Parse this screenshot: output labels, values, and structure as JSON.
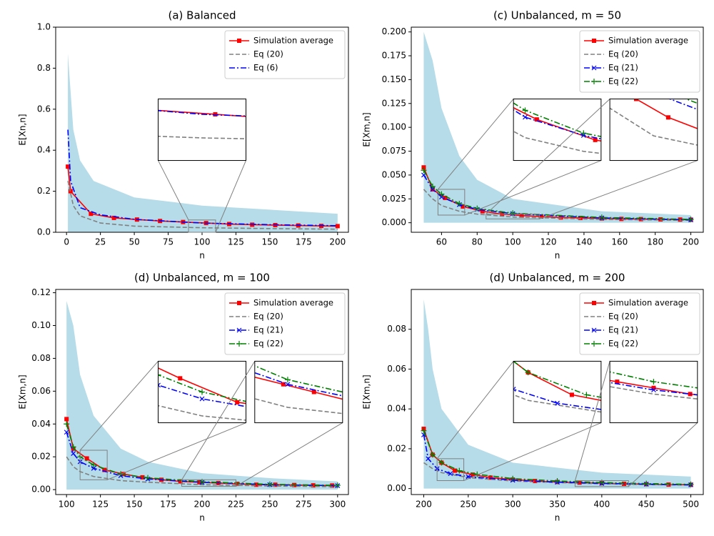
{
  "chart_data": [
    {
      "type": "line",
      "title": "(a) Balanced",
      "xlabel": "n",
      "ylabel": "E[Xn,n]",
      "xlim": [
        -8,
        208
      ],
      "ylim": [
        0,
        1
      ],
      "xticks": [
        0,
        25,
        50,
        75,
        100,
        125,
        150,
        175,
        200
      ],
      "yticks": [
        {
          "value": 0,
          "label": "0.0"
        },
        0.2,
        0.4,
        0.6,
        0.8,
        {
          "value": 1,
          "label": "1.0"
        }
      ],
      "legend": "upper right",
      "cloud": {
        "color": "#add8e6",
        "x": [
          1,
          5,
          10,
          20,
          50,
          100,
          150,
          200
        ],
        "values": [
          0.87,
          0.5,
          0.35,
          0.25,
          0.17,
          0.13,
          0.11,
          0.09
        ]
      },
      "series": [
        {
          "name": "Simulation average",
          "color": "#ff0000",
          "dash": "none",
          "marker": "s",
          "x": [
            1,
            3,
            18,
            35,
            52,
            69,
            86,
            103,
            120,
            137,
            154,
            171,
            188,
            200
          ],
          "values": [
            0.32,
            0.2,
            0.09,
            0.07,
            0.062,
            0.055,
            0.05,
            0.045,
            0.04,
            0.037,
            0.035,
            0.033,
            0.031,
            0.03
          ]
        },
        {
          "name": "Eq (20)",
          "color": "#808080",
          "dash": "6,3",
          "marker": null,
          "x": [
            1,
            5,
            10,
            25,
            50,
            100,
            150,
            200
          ],
          "values": [
            0.25,
            0.13,
            0.08,
            0.045,
            0.03,
            0.022,
            0.018,
            0.015
          ]
        },
        {
          "name": "Eq (6)",
          "color": "#0000ff",
          "dash": "8,3,2,3",
          "marker": null,
          "x": [
            1,
            3,
            10,
            25,
            50,
            100,
            150,
            200
          ],
          "values": [
            0.5,
            0.25,
            0.12,
            0.085,
            0.063,
            0.045,
            0.037,
            0.032
          ]
        }
      ],
      "insets": [
        {
          "xlim": [
            90,
            110
          ],
          "ylim": [
            0,
            0.06
          ]
        }
      ]
    },
    {
      "type": "line",
      "title": "(c) Unbalanced, m = 50",
      "xlabel": "n",
      "ylabel": "E[Xm,n]",
      "xlim": [
        43,
        207
      ],
      "ylim": [
        -0.01,
        0.205
      ],
      "xticks": [
        60,
        80,
        100,
        120,
        140,
        160,
        180,
        200
      ],
      "yticks": [
        {
          "value": 0,
          "label": "0.000"
        },
        0.025,
        {
          "value": 0.05,
          "label": "0.050"
        },
        0.075,
        {
          "value": 0.1,
          "label": "0.100"
        },
        0.125,
        {
          "value": 0.15,
          "label": "0.150"
        },
        0.175,
        {
          "value": 0.2,
          "label": "0.200"
        }
      ],
      "legend": "upper right",
      "cloud": {
        "color": "#add8e6",
        "x": [
          50,
          55,
          60,
          70,
          80,
          100,
          150,
          200
        ],
        "values": [
          0.2,
          0.17,
          0.12,
          0.07,
          0.045,
          0.025,
          0.012,
          0.008
        ]
      },
      "series": [
        {
          "name": "Simulation average",
          "color": "#ff0000",
          "dash": "none",
          "marker": "s",
          "x": [
            50,
            55,
            62,
            72,
            83,
            94,
            105,
            116,
            127,
            138,
            150,
            161,
            172,
            183,
            194,
            200
          ],
          "values": [
            0.058,
            0.035,
            0.026,
            0.017,
            0.012,
            0.009,
            0.0075,
            0.0065,
            0.0055,
            0.005,
            0.0045,
            0.004,
            0.0038,
            0.0035,
            0.0033,
            0.0032
          ]
        },
        {
          "name": "Eq (20)",
          "color": "#808080",
          "dash": "6,3",
          "marker": null,
          "x": [
            50,
            55,
            60,
            70,
            80,
            100,
            150,
            200
          ],
          "values": [
            0.035,
            0.025,
            0.018,
            0.012,
            0.009,
            0.006,
            0.0035,
            0.0025
          ]
        },
        {
          "name": "Eq (21)",
          "color": "#0000ff",
          "dash": "8,3,2,3",
          "marker": "x",
          "x": [
            50,
            55,
            60,
            70,
            80,
            100,
            150,
            200
          ],
          "values": [
            0.05,
            0.035,
            0.027,
            0.019,
            0.014,
            0.0095,
            0.005,
            0.003
          ]
        },
        {
          "name": "Eq (22)",
          "color": "#008000",
          "dash": "8,3,2,3",
          "marker": "+",
          "x": [
            50,
            55,
            60,
            70,
            80,
            100,
            150,
            200
          ],
          "values": [
            0.055,
            0.038,
            0.03,
            0.02,
            0.015,
            0.01,
            0.0055,
            0.0035
          ]
        }
      ],
      "insets": [
        {
          "xlim": [
            58,
            73
          ],
          "ylim": [
            0.008,
            0.035
          ]
        },
        {
          "xlim": [
            85,
            115
          ],
          "ylim": [
            0.004,
            0.009
          ]
        }
      ]
    },
    {
      "type": "line",
      "title": "(d) Unbalanced, m = 100",
      "xlabel": "n",
      "ylabel": "E[Xm,n]",
      "xlim": [
        92,
        308
      ],
      "ylim": [
        -0.003,
        0.122
      ],
      "xticks": [
        100,
        125,
        150,
        175,
        200,
        225,
        250,
        275,
        300
      ],
      "yticks": [
        {
          "value": 0,
          "label": "0.00"
        },
        0.02,
        0.04,
        0.06,
        0.08,
        {
          "value": 0.1,
          "label": "0.10"
        },
        0.12
      ],
      "legend": "upper right",
      "cloud": {
        "color": "#add8e6",
        "x": [
          100,
          105,
          110,
          120,
          140,
          160,
          200,
          250,
          300
        ],
        "values": [
          0.115,
          0.1,
          0.07,
          0.045,
          0.025,
          0.017,
          0.01,
          0.007,
          0.005
        ]
      },
      "series": [
        {
          "name": "Simulation average",
          "color": "#ff0000",
          "dash": "none",
          "marker": "s",
          "x": [
            100,
            105,
            115,
            128,
            142,
            156,
            170,
            184,
            198,
            212,
            226,
            240,
            254,
            268,
            282,
            296
          ],
          "values": [
            0.043,
            0.025,
            0.019,
            0.012,
            0.0095,
            0.0075,
            0.006,
            0.005,
            0.0045,
            0.004,
            0.0035,
            0.003,
            0.003,
            0.0028,
            0.0026,
            0.0025
          ]
        },
        {
          "name": "Eq (20)",
          "color": "#808080",
          "dash": "6,3",
          "marker": null,
          "x": [
            100,
            105,
            110,
            120,
            140,
            160,
            200,
            250,
            300
          ],
          "values": [
            0.02,
            0.014,
            0.011,
            0.008,
            0.0055,
            0.0045,
            0.003,
            0.0022,
            0.0018
          ]
        },
        {
          "name": "Eq (21)",
          "color": "#0000ff",
          "dash": "8,3,2,3",
          "marker": "x",
          "x": [
            100,
            105,
            110,
            120,
            140,
            160,
            200,
            250,
            300
          ],
          "values": [
            0.035,
            0.022,
            0.017,
            0.013,
            0.0085,
            0.0065,
            0.0045,
            0.003,
            0.0024
          ]
        },
        {
          "name": "Eq (22)",
          "color": "#008000",
          "dash": "8,3,2,3",
          "marker": "+",
          "x": [
            100,
            105,
            110,
            120,
            140,
            160,
            200,
            250,
            300
          ],
          "values": [
            0.04,
            0.026,
            0.02,
            0.015,
            0.0095,
            0.0072,
            0.0048,
            0.0032,
            0.0026
          ]
        }
      ],
      "insets": [
        {
          "xlim": [
            110,
            130
          ],
          "ylim": [
            0.006,
            0.024
          ]
        },
        {
          "xlim": [
            185,
            225
          ],
          "ylim": [
            0.002,
            0.006
          ]
        }
      ]
    },
    {
      "type": "line",
      "title": "(d) Unbalanced, m = 200",
      "xlabel": "n",
      "ylabel": "E[Xm,n]",
      "xlim": [
        186,
        514
      ],
      "ylim": [
        -0.003,
        0.1
      ],
      "xticks": [
        200,
        250,
        300,
        350,
        400,
        450,
        500
      ],
      "yticks": [
        {
          "value": 0,
          "label": "0.00"
        },
        0.02,
        0.04,
        0.06,
        0.08
      ],
      "legend": "upper right",
      "cloud": {
        "color": "#add8e6",
        "x": [
          200,
          205,
          210,
          220,
          250,
          300,
          400,
          500
        ],
        "values": [
          0.095,
          0.08,
          0.06,
          0.04,
          0.022,
          0.013,
          0.008,
          0.006
        ]
      },
      "series": [
        {
          "name": "Simulation average",
          "color": "#ff0000",
          "dash": "none",
          "marker": "s",
          "x": [
            200,
            210,
            220,
            235,
            255,
            275,
            300,
            325,
            350,
            375,
            400,
            425,
            450,
            475,
            500
          ],
          "values": [
            0.03,
            0.017,
            0.013,
            0.009,
            0.007,
            0.0055,
            0.0045,
            0.0038,
            0.0033,
            0.003,
            0.0027,
            0.0024,
            0.0022,
            0.002,
            0.0019
          ]
        },
        {
          "name": "Eq (20)",
          "color": "#808080",
          "dash": "6,3",
          "marker": null,
          "x": [
            200,
            210,
            220,
            250,
            300,
            350,
            400,
            450,
            500
          ],
          "values": [
            0.013,
            0.01,
            0.008,
            0.0055,
            0.0038,
            0.003,
            0.0024,
            0.002,
            0.0017
          ]
        },
        {
          "name": "Eq (21)",
          "color": "#0000ff",
          "dash": "8,3,2,3",
          "marker": "x",
          "x": [
            200,
            205,
            215,
            230,
            250,
            300,
            350,
            400,
            450,
            500
          ],
          "values": [
            0.027,
            0.015,
            0.01,
            0.0075,
            0.006,
            0.0042,
            0.0032,
            0.0026,
            0.0022,
            0.0019
          ]
        },
        {
          "name": "Eq (22)",
          "color": "#008000",
          "dash": "8,3,2,3",
          "marker": "+",
          "x": [
            200,
            210,
            220,
            240,
            260,
            300,
            350,
            400,
            450,
            500
          ],
          "values": [
            0.029,
            0.017,
            0.013,
            0.009,
            0.0072,
            0.005,
            0.0038,
            0.003,
            0.0025,
            0.0021
          ]
        }
      ],
      "insets": [
        {
          "xlim": [
            215,
            245
          ],
          "ylim": [
            0.004,
            0.015
          ]
        },
        {
          "xlim": [
            370,
            430
          ],
          "ylim": [
            0.001,
            0.004
          ]
        }
      ]
    }
  ]
}
